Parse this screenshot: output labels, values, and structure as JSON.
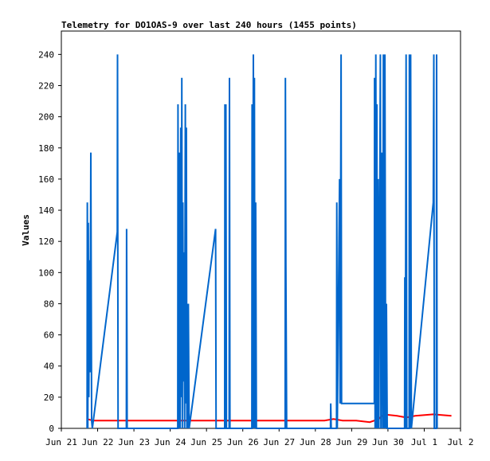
{
  "chart_data": {
    "type": "line",
    "title": "Telemetry for DO1OAS-9 over last 240 hours (1455 points)",
    "xlabel": "",
    "ylabel": "Values",
    "xlim": [
      "Jun 21 00:00",
      "Jul 2 00:00"
    ],
    "ylim": [
      0,
      255
    ],
    "x_ticks": [
      "Jun 21",
      "Jun 22",
      "Jun 23",
      "Jun 24",
      "Jun 25",
      "Jun 26",
      "Jun 27",
      "Jun 28",
      "Jun 29",
      "Jun 30",
      "Jul 1",
      "Jul 2"
    ],
    "y_ticks": [
      0,
      20,
      40,
      60,
      80,
      100,
      120,
      140,
      160,
      180,
      200,
      220,
      240
    ],
    "grid": false,
    "legend": "none",
    "series": [
      {
        "color": "#ff0000",
        "points": [
          [
            "Jun 21 17:00",
            6
          ],
          [
            "Jun 21 21:00",
            5
          ],
          [
            "Jun 22 06:00",
            5
          ],
          [
            "Jun 23 12:00",
            5
          ],
          [
            "Jun 24 18:00",
            5
          ],
          [
            "Jun 25 12:00",
            5
          ],
          [
            "Jun 25 20:00",
            5
          ],
          [
            "Jun 26 06:00",
            5
          ],
          [
            "Jun 27 12:00",
            5
          ],
          [
            "Jun 28 06:00",
            5
          ],
          [
            "Jun 28 12:00",
            6
          ],
          [
            "Jun 28 18:00",
            5
          ],
          [
            "Jun 29 03:00",
            5
          ],
          [
            "Jun 29 12:00",
            4
          ],
          [
            "Jun 29 18:00",
            6
          ],
          [
            "Jun 29 21:00",
            9
          ],
          [
            "Jun 30 06:00",
            8
          ],
          [
            "Jun 30 12:00",
            7
          ],
          [
            "Jun 30 18:00",
            8
          ],
          [
            "Jul 1 06:00",
            9
          ],
          [
            "Jul 1 18:00",
            8
          ]
        ]
      },
      {
        "color": "#0066cc",
        "points": [
          [
            "Jun 21 17:00",
            0
          ],
          [
            "Jun 21 17:10",
            145
          ],
          [
            "Jun 21 17:30",
            0
          ],
          [
            "Jun 21 17:50",
            132
          ],
          [
            "Jun 21 18:10",
            20
          ],
          [
            "Jun 21 18:30",
            108
          ],
          [
            "Jun 21 19:00",
            36
          ],
          [
            "Jun 21 19:30",
            177
          ],
          [
            "Jun 21 20:00",
            5
          ],
          [
            "Jun 21 20:30",
            0
          ],
          [
            "Jun 22 13:00",
            126
          ],
          [
            "Jun 22 13:10",
            240
          ],
          [
            "Jun 22 13:30",
            0
          ],
          [
            "Jun 22 19:00",
            0
          ],
          [
            "Jun 22 19:10",
            128
          ],
          [
            "Jun 22 19:30",
            0
          ],
          [
            "Jun 24 05:00",
            0
          ],
          [
            "Jun 24 05:10",
            208
          ],
          [
            "Jun 24 05:30",
            0
          ],
          [
            "Jun 24 06:00",
            177
          ],
          [
            "Jun 24 06:30",
            0
          ],
          [
            "Jun 24 07:00",
            193
          ],
          [
            "Jun 24 07:20",
            20
          ],
          [
            "Jun 24 07:40",
            225
          ],
          [
            "Jun 24 08:00",
            0
          ],
          [
            "Jun 24 08:20",
            145
          ],
          [
            "Jun 24 08:40",
            30
          ],
          [
            "Jun 24 09:00",
            113
          ],
          [
            "Jun 24 09:30",
            0
          ],
          [
            "Jun 24 10:00",
            208
          ],
          [
            "Jun 24 10:20",
            16
          ],
          [
            "Jun 24 10:40",
            193
          ],
          [
            "Jun 24 11:00",
            0
          ],
          [
            "Jun 24 11:20",
            80
          ],
          [
            "Jun 24 11:40",
            0
          ],
          [
            "Jun 24 12:00",
            80
          ],
          [
            "Jun 24 12:30",
            0
          ],
          [
            "Jun 25 06:00",
            128
          ],
          [
            "Jun 25 06:20",
            0
          ],
          [
            "Jun 25 12:00",
            0
          ],
          [
            "Jun 25 12:10",
            208
          ],
          [
            "Jun 25 12:30",
            0
          ],
          [
            "Jun 25 12:50",
            208
          ],
          [
            "Jun 25 13:10",
            0
          ],
          [
            "Jun 25 15:00",
            0
          ],
          [
            "Jun 25 15:10",
            225
          ],
          [
            "Jun 25 15:30",
            0
          ],
          [
            "Jun 26 06:00",
            0
          ],
          [
            "Jun 26 06:10",
            208
          ],
          [
            "Jun 26 06:30",
            0
          ],
          [
            "Jun 26 07:00",
            240
          ],
          [
            "Jun 26 07:20",
            0
          ],
          [
            "Jun 26 07:40",
            225
          ],
          [
            "Jun 26 08:00",
            0
          ],
          [
            "Jun 26 08:30",
            145
          ],
          [
            "Jun 26 09:00",
            0
          ],
          [
            "Jun 27 04:00",
            0
          ],
          [
            "Jun 27 04:10",
            225
          ],
          [
            "Jun 27 04:30",
            105
          ],
          [
            "Jun 27 05:00",
            0
          ],
          [
            "Jun 28 10:00",
            0
          ],
          [
            "Jun 28 10:10",
            16
          ],
          [
            "Jun 28 10:30",
            0
          ],
          [
            "Jun 28 14:00",
            0
          ],
          [
            "Jun 28 14:10",
            145
          ],
          [
            "Jun 28 14:30",
            0
          ],
          [
            "Jun 28 16:00",
            160
          ],
          [
            "Jun 28 16:20",
            16
          ],
          [
            "Jun 28 17:00",
            240
          ],
          [
            "Jun 28 17:20",
            16
          ],
          [
            "Jun 29 15:00",
            16
          ],
          [
            "Jun 29 15:10",
            225
          ],
          [
            "Jun 29 15:30",
            0
          ],
          [
            "Jun 29 16:00",
            240
          ],
          [
            "Jun 29 16:20",
            0
          ],
          [
            "Jun 29 16:40",
            208
          ],
          [
            "Jun 29 17:00",
            0
          ],
          [
            "Jun 29 17:30",
            160
          ],
          [
            "Jun 29 18:00",
            0
          ],
          [
            "Jun 29 19:00",
            240
          ],
          [
            "Jun 29 19:20",
            0
          ],
          [
            "Jun 29 20:00",
            177
          ],
          [
            "Jun 29 20:30",
            0
          ],
          [
            "Jun 29 21:00",
            240
          ],
          [
            "Jun 29 21:30",
            0
          ],
          [
            "Jun 29 22:00",
            240
          ],
          [
            "Jun 29 22:30",
            0
          ],
          [
            "Jun 29 23:00",
            80
          ],
          [
            "Jun 29 23:30",
            0
          ],
          [
            "Jun 30 11:00",
            0
          ],
          [
            "Jun 30 11:10",
            97
          ],
          [
            "Jun 30 11:30",
            0
          ],
          [
            "Jun 30 12:00",
            240
          ],
          [
            "Jun 30 12:30",
            0
          ],
          [
            "Jun 30 14:00",
            0
          ],
          [
            "Jun 30 14:10",
            240
          ],
          [
            "Jun 30 14:30",
            0
          ],
          [
            "Jun 30 15:00",
            240
          ],
          [
            "Jun 30 15:30",
            0
          ],
          [
            "Jul 1 06:00",
            145
          ],
          [
            "Jul 1 06:20",
            240
          ],
          [
            "Jul 1 06:40",
            0
          ],
          [
            "Jul 1 08:00",
            0
          ],
          [
            "Jul 1 08:10",
            240
          ],
          [
            "Jul 1 08:30",
            0
          ]
        ]
      }
    ]
  }
}
